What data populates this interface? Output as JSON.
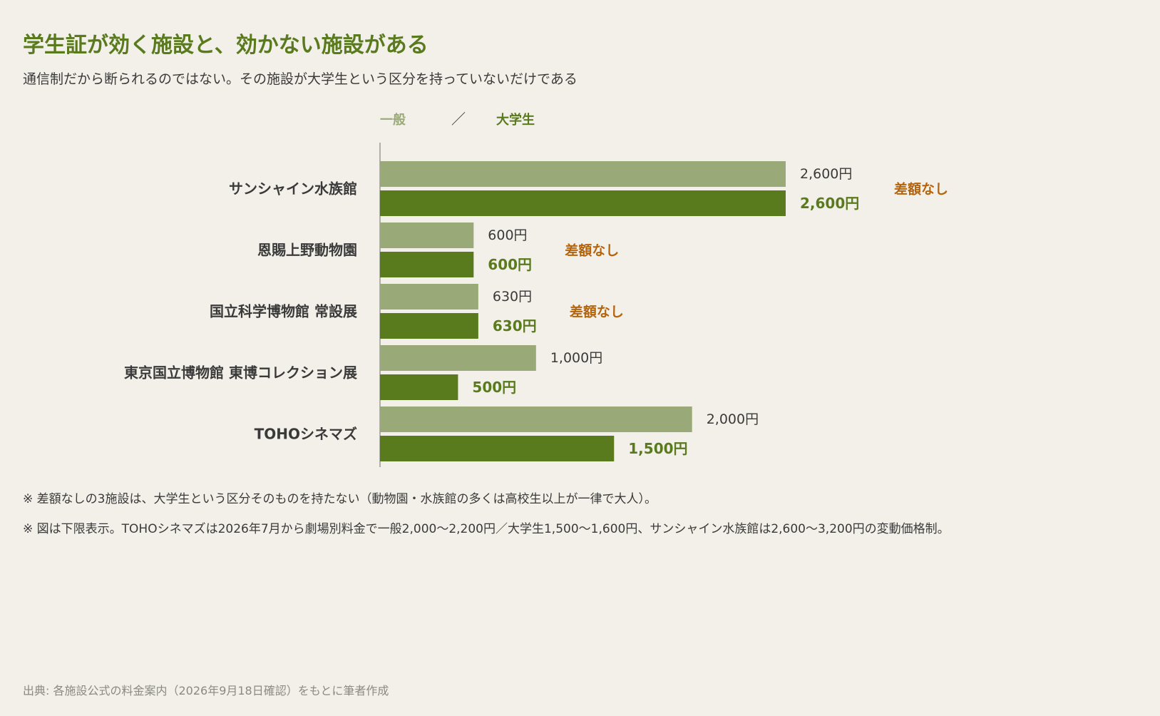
{
  "title": "学生証が効く施設と、効かない施設がある",
  "subtitle": "通信制だから断られるのではない。その施設が大学生という区分を持っていないだけである",
  "notes": [
    "※ 差額なしの3施設は、大学生という区分そのものを持たない（動物園・水族館の多くは高校生以上が一律で大人）。",
    "※ 図は下限表示。TOHOシネマズは2026年7月から劇場別料金で一般2,000〜2,200円／大学生1,500〜1,600円、サンシャイン水族館は2,600〜3,200円の変動価格制。"
  ],
  "source": "出典: 各施設公式の料金案内（2026年9月18日確認）をもとに筆者作成",
  "colors": {
    "general": "#9aa978",
    "student": "#5a7a1e",
    "no_diff": "#b5640e",
    "axis": "#9a9a90",
    "label": "#3a3a3a"
  },
  "chart_data": {
    "type": "bar",
    "orientation": "horizontal",
    "legend": {
      "general": "一般",
      "separator": "／",
      "student": "大学生",
      "placement": "top-left"
    },
    "categories": [
      "サンシャイン水族館",
      "恩賜上野動物園",
      "国立科学博物館 常設展",
      "東京国立博物館 東博コレクション展",
      "TOHOシネマズ"
    ],
    "series": [
      {
        "name": "一般",
        "values": [
          2600,
          600,
          630,
          1000,
          2000
        ],
        "labels": [
          "2,600円",
          "600円",
          "630円",
          "1,000円",
          "2,000円"
        ]
      },
      {
        "name": "大学生",
        "values": [
          2600,
          600,
          630,
          500,
          1500
        ],
        "labels": [
          "2,600円",
          "600円",
          "630円",
          "500円",
          "1,500円"
        ]
      }
    ],
    "annotations": [
      "差額なし",
      "差額なし",
      "差額なし",
      "",
      ""
    ],
    "xlim": [
      0,
      2600
    ],
    "grid": false,
    "unit": "円"
  }
}
